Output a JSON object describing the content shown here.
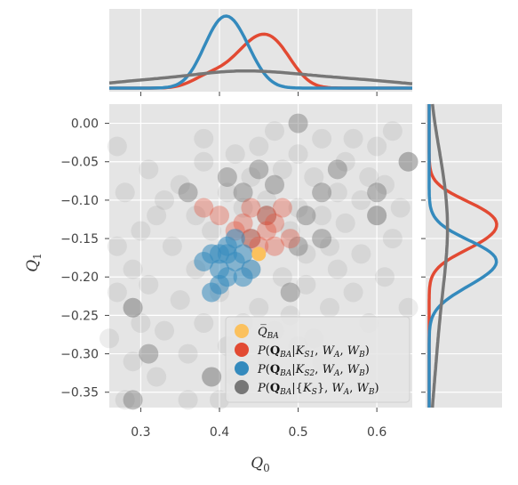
{
  "chart_data": {
    "type": "scatter",
    "title": "",
    "xlabel": "Q",
    "xlabel_sub": "0",
    "ylabel": "Q",
    "ylabel_sub": "1",
    "xlim": [
      0.26,
      0.645
    ],
    "ylim": [
      -0.37,
      0.025
    ],
    "xticks": [
      0.3,
      0.4,
      0.5,
      0.6
    ],
    "xtick_labels": [
      "0.3",
      "0.4",
      "0.5",
      "0.6"
    ],
    "yticks": [
      0.0,
      -0.05,
      -0.1,
      -0.15,
      -0.2,
      -0.25,
      -0.3,
      -0.35
    ],
    "ytick_labels": [
      "0.00",
      "−0.05",
      "−0.10",
      "−0.15",
      "−0.20",
      "−0.25",
      "−0.30",
      "−0.35"
    ],
    "grid": true,
    "legend_position": "lower right",
    "colors": {
      "mean": "#fbc15e",
      "ks1": "#e24a33",
      "ks2": "#348abd",
      "all": "#777777",
      "panel_bg": "#e5e5e5"
    },
    "legend": [
      {
        "key": "mean",
        "label": "Q̅_BA"
      },
      {
        "key": "ks1",
        "label": "P(Q_BA|K_S1, W_A, W_B)"
      },
      {
        "key": "ks2",
        "label": "P(Q_BA|K_S2, W_A, W_B)"
      },
      {
        "key": "all",
        "label": "P(Q_BA|{K_S}, W_A, W_B)"
      }
    ],
    "series": [
      {
        "key": "all",
        "points": [
          [
            0.27,
            -0.03
          ],
          [
            0.28,
            -0.09
          ],
          [
            0.27,
            -0.16
          ],
          [
            0.29,
            -0.19
          ],
          [
            0.27,
            -0.22
          ],
          [
            0.29,
            -0.24
          ],
          [
            0.26,
            -0.28
          ],
          [
            0.29,
            -0.31
          ],
          [
            0.28,
            -0.36
          ],
          [
            0.3,
            -0.14
          ],
          [
            0.31,
            -0.06
          ],
          [
            0.32,
            -0.12
          ],
          [
            0.31,
            -0.21
          ],
          [
            0.33,
            -0.27
          ],
          [
            0.32,
            -0.33
          ],
          [
            0.34,
            -0.16
          ],
          [
            0.35,
            -0.08
          ],
          [
            0.35,
            -0.23
          ],
          [
            0.36,
            -0.3
          ],
          [
            0.37,
            -0.12
          ],
          [
            0.37,
            -0.19
          ],
          [
            0.38,
            -0.26
          ],
          [
            0.38,
            -0.05
          ],
          [
            0.39,
            -0.33
          ],
          [
            0.39,
            -0.14
          ],
          [
            0.4,
            -0.36
          ],
          [
            0.4,
            -0.22
          ],
          [
            0.41,
            -0.29
          ],
          [
            0.41,
            -0.09
          ],
          [
            0.42,
            -0.04
          ],
          [
            0.43,
            -0.11
          ],
          [
            0.43,
            -0.26
          ],
          [
            0.44,
            -0.07
          ],
          [
            0.44,
            -0.19
          ],
          [
            0.45,
            -0.03
          ],
          [
            0.45,
            -0.24
          ],
          [
            0.46,
            -0.1
          ],
          [
            0.47,
            -0.27
          ],
          [
            0.47,
            -0.01
          ],
          [
            0.48,
            -0.06
          ],
          [
            0.48,
            -0.2
          ],
          [
            0.49,
            -0.14
          ],
          [
            0.49,
            -0.25
          ],
          [
            0.5,
            -0.04
          ],
          [
            0.5,
            -0.11
          ],
          [
            0.51,
            -0.17
          ],
          [
            0.51,
            -0.21
          ],
          [
            0.52,
            -0.07
          ],
          [
            0.52,
            -0.28
          ],
          [
            0.53,
            -0.12
          ],
          [
            0.53,
            -0.02
          ],
          [
            0.54,
            -0.16
          ],
          [
            0.54,
            -0.24
          ],
          [
            0.55,
            -0.09
          ],
          [
            0.55,
            -0.19
          ],
          [
            0.56,
            -0.05
          ],
          [
            0.56,
            -0.13
          ],
          [
            0.57,
            -0.22
          ],
          [
            0.57,
            -0.02
          ],
          [
            0.58,
            -0.1
          ],
          [
            0.58,
            -0.17
          ],
          [
            0.59,
            -0.07
          ],
          [
            0.59,
            -0.26
          ],
          [
            0.6,
            -0.12
          ],
          [
            0.6,
            -0.03
          ],
          [
            0.61,
            -0.2
          ],
          [
            0.61,
            -0.08
          ],
          [
            0.62,
            -0.15
          ],
          [
            0.62,
            -0.01
          ],
          [
            0.63,
            -0.11
          ],
          [
            0.64,
            -0.05
          ],
          [
            0.64,
            -0.24
          ],
          [
            0.33,
            -0.1
          ],
          [
            0.36,
            -0.36
          ],
          [
            0.42,
            -0.33
          ],
          [
            0.46,
            -0.31
          ],
          [
            0.5,
            -0.29
          ],
          [
            0.53,
            -0.31
          ],
          [
            0.3,
            -0.26
          ],
          [
            0.38,
            -0.02
          ]
        ]
      },
      {
        "key": "all_strong",
        "points": [
          [
            0.36,
            -0.09
          ],
          [
            0.41,
            -0.07
          ],
          [
            0.43,
            -0.09
          ],
          [
            0.45,
            -0.06
          ],
          [
            0.47,
            -0.08
          ],
          [
            0.46,
            -0.12
          ],
          [
            0.53,
            -0.09
          ],
          [
            0.55,
            -0.06
          ],
          [
            0.5,
            -0.16
          ],
          [
            0.51,
            -0.12
          ],
          [
            0.44,
            -0.15
          ],
          [
            0.53,
            -0.15
          ],
          [
            0.49,
            -0.22
          ],
          [
            0.29,
            -0.24
          ],
          [
            0.31,
            -0.3
          ],
          [
            0.29,
            -0.36
          ],
          [
            0.39,
            -0.33
          ],
          [
            0.5,
            0.0
          ],
          [
            0.6,
            -0.09
          ],
          [
            0.6,
            -0.12
          ],
          [
            0.64,
            -0.05
          ]
        ]
      },
      {
        "key": "ks1",
        "points": [
          [
            0.38,
            -0.11
          ],
          [
            0.4,
            -0.12
          ],
          [
            0.42,
            -0.14
          ],
          [
            0.44,
            -0.15
          ],
          [
            0.45,
            -0.16
          ],
          [
            0.47,
            -0.13
          ],
          [
            0.48,
            -0.11
          ],
          [
            0.46,
            -0.12
          ],
          [
            0.43,
            -0.13
          ],
          [
            0.49,
            -0.15
          ],
          [
            0.44,
            -0.11
          ],
          [
            0.47,
            -0.16
          ],
          [
            0.46,
            -0.14
          ]
        ]
      },
      {
        "key": "ks2",
        "points": [
          [
            0.39,
            -0.17
          ],
          [
            0.4,
            -0.19
          ],
          [
            0.41,
            -0.16
          ],
          [
            0.42,
            -0.18
          ],
          [
            0.43,
            -0.17
          ],
          [
            0.41,
            -0.2
          ],
          [
            0.44,
            -0.19
          ],
          [
            0.4,
            -0.21
          ],
          [
            0.42,
            -0.15
          ],
          [
            0.38,
            -0.18
          ],
          [
            0.41,
            -0.17
          ],
          [
            0.43,
            -0.2
          ],
          [
            0.39,
            -0.22
          ],
          [
            0.4,
            -0.17
          ]
        ]
      },
      {
        "key": "mean",
        "points": [
          [
            0.45,
            -0.17
          ]
        ]
      }
    ]
  }
}
